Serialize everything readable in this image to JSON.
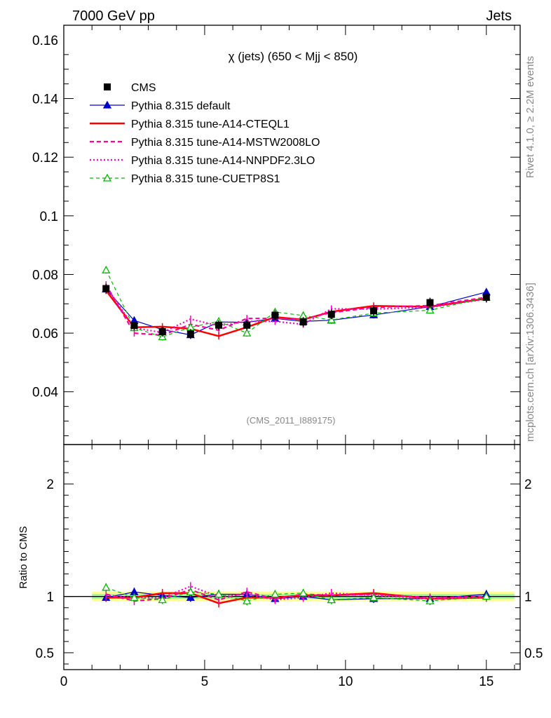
{
  "header": {
    "left": "7000 GeV pp",
    "right": "Jets"
  },
  "side_labels": {
    "top": "Rivet 4.1.0, ≥ 2.2M events",
    "bottom": "mcplots.cern.ch [arXiv:1306.3436]"
  },
  "watermark": "(CMS_2011_I889175)",
  "colors": {
    "cms": "#000000",
    "default": "#0000cc",
    "cteql1": "#ff0000",
    "mstw": "#ff0099",
    "nnpdf": "#ff00cc",
    "cuetp": "#00bb00",
    "band_inner": "#99ff99",
    "band_outer": "#ffff99"
  },
  "chart_data": [
    {
      "type": "line",
      "title": "χ (jets) (650 < Mjj <  850)",
      "xlabel": "",
      "ylabel": "",
      "xlim": [
        0,
        16.2
      ],
      "ylim": [
        0.022,
        0.165
      ],
      "yticks": [
        "0.04",
        "0.06",
        "0.08",
        "0.1",
        "0.12",
        "0.14",
        "0.16"
      ],
      "ytick_values": [
        0.04,
        0.06,
        0.08,
        0.1,
        0.12,
        0.14,
        0.16
      ],
      "x": [
        1.5,
        2.5,
        3.5,
        4.5,
        5.5,
        6.5,
        7.5,
        8.5,
        9.5,
        11,
        13,
        15
      ],
      "legend": [
        "CMS",
        "Pythia 8.315 default",
        "Pythia 8.315 tune-A14-CTEQL1",
        "Pythia 8.315 tune-A14-MSTW2008LO",
        "Pythia 8.315 tune-A14-NNPDF2.3LO",
        "Pythia 8.315 tune-CUETP8S1"
      ],
      "series": [
        {
          "name": "CMS",
          "values": [
            0.0752,
            0.0626,
            0.0605,
            0.0597,
            0.0627,
            0.0627,
            0.0661,
            0.0638,
            0.0664,
            0.0676,
            0.0704,
            0.0722
          ]
        },
        {
          "name": "Pythia 8.315 default",
          "values": [
            0.075,
            0.0643,
            0.0612,
            0.0594,
            0.0638,
            0.0637,
            0.065,
            0.064,
            0.0644,
            0.0662,
            0.069,
            0.074
          ]
        },
        {
          "name": "Pythia 8.315 tune-A14-CTEQL1",
          "values": [
            0.0745,
            0.062,
            0.0622,
            0.0615,
            0.059,
            0.062,
            0.0655,
            0.0646,
            0.0673,
            0.0693,
            0.069,
            0.0718
          ]
        },
        {
          "name": "Pythia 8.315 tune-A14-MSTW2008LO",
          "values": [
            0.0765,
            0.06,
            0.0593,
            0.063,
            0.061,
            0.065,
            0.065,
            0.0648,
            0.067,
            0.0688,
            0.0694,
            0.0722
          ]
        },
        {
          "name": "Pythia 8.315 tune-A14-NNPDF2.3LO",
          "values": [
            0.076,
            0.0618,
            0.0602,
            0.0648,
            0.0625,
            0.064,
            0.064,
            0.063,
            0.0683,
            0.0682,
            0.0688,
            0.0716
          ]
        },
        {
          "name": "Pythia 8.315 tune-CUETP8S1",
          "values": [
            0.0815,
            0.0618,
            0.0587,
            0.062,
            0.064,
            0.06,
            0.0672,
            0.066,
            0.0645,
            0.0668,
            0.0678,
            0.0722
          ]
        }
      ]
    },
    {
      "type": "line",
      "title": "",
      "xlabel": "",
      "ylabel": "Ratio to CMS",
      "xlim": [
        0,
        16.2
      ],
      "ylim": [
        0.35,
        2.35
      ],
      "yticks": [
        "0.5",
        "1",
        "2"
      ],
      "ytick_values": [
        0.5,
        1,
        2
      ],
      "xticks": [
        "0",
        "5",
        "10",
        "15"
      ],
      "xtick_values": [
        0,
        5,
        10,
        15
      ],
      "series": [
        {
          "name": "Pythia 8.315 default",
          "values": [
            0.99,
            1.04,
            1.01,
            0.99,
            1.02,
            1.02,
            0.98,
            1.0,
            0.97,
            0.98,
            0.98,
            1.02
          ]
        },
        {
          "name": "Pythia 8.315 tune-A14-CTEQL1",
          "values": [
            0.99,
            0.99,
            1.03,
            1.03,
            0.94,
            0.99,
            0.99,
            1.01,
            1.01,
            1.03,
            0.98,
            0.99
          ]
        },
        {
          "name": "Pythia 8.315 tune-A14-MSTW2008LO",
          "values": [
            1.02,
            0.96,
            0.98,
            1.06,
            0.97,
            1.04,
            0.98,
            1.02,
            1.01,
            1.02,
            0.99,
            1.0
          ]
        },
        {
          "name": "Pythia 8.315 tune-A14-NNPDF2.3LO",
          "values": [
            1.01,
            0.99,
            0.99,
            1.09,
            1.0,
            1.02,
            0.97,
            0.99,
            1.03,
            1.01,
            0.98,
            0.99
          ]
        },
        {
          "name": "Pythia 8.315 tune-CUETP8S1",
          "values": [
            1.08,
            0.99,
            0.97,
            1.04,
            1.02,
            0.96,
            1.02,
            1.03,
            0.97,
            0.99,
            0.96,
            1.0
          ]
        }
      ]
    }
  ]
}
